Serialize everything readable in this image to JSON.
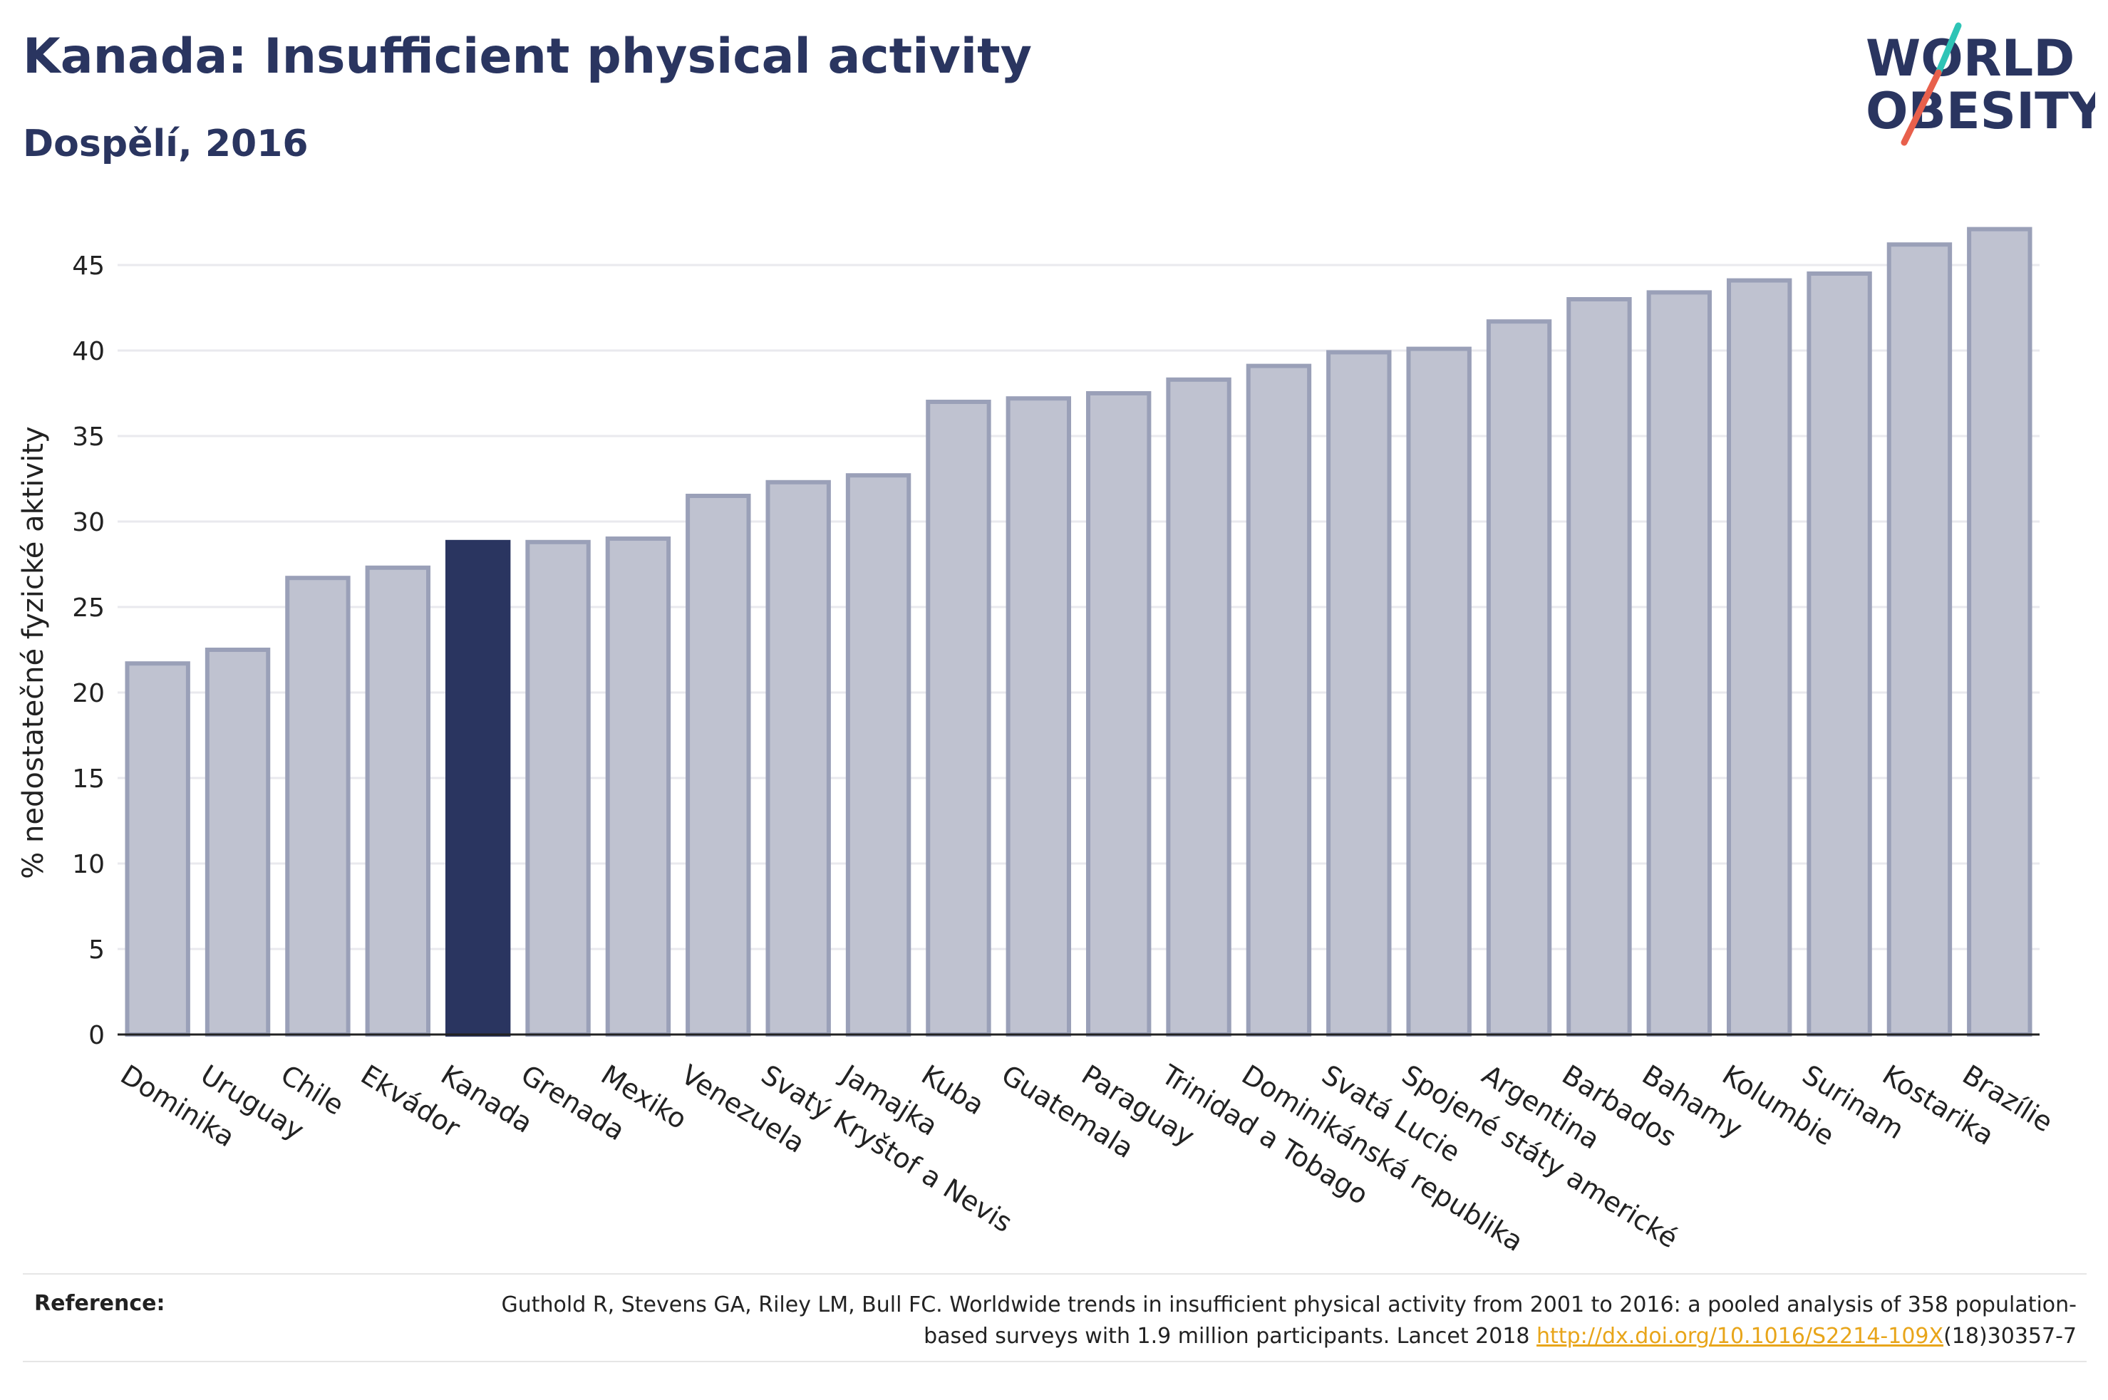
{
  "header": {
    "title": "Kanada: Insufficient physical activity",
    "subtitle": "Dospělí, 2016"
  },
  "logo": {
    "line1": "WORLD",
    "line2": "OBESITY",
    "colors": {
      "text": "#2a3560",
      "slash_teal": "#2ec4b6",
      "slash_coral": "#e8604c"
    }
  },
  "chart_data": {
    "type": "bar",
    "categories": [
      "Dominika",
      "Uruguay",
      "Chile",
      "Ekvádor",
      "Kanada",
      "Grenada",
      "Mexiko",
      "Venezuela",
      "Svatý Kryštof a Nevis",
      "Jamajka",
      "Kuba",
      "Guatemala",
      "Paraguay",
      "Trinidad a Tobago",
      "Dominikánská republika",
      "Svatá Lucie",
      "Spojené státy americké",
      "Argentina",
      "Barbados",
      "Bahamy",
      "Kolumbie",
      "Surinam",
      "Kostarika",
      "Brazílie"
    ],
    "values": [
      21.7,
      22.5,
      26.7,
      27.3,
      28.8,
      28.8,
      29.0,
      31.5,
      32.3,
      32.7,
      37.0,
      37.2,
      37.5,
      38.3,
      39.1,
      39.9,
      40.1,
      41.7,
      43.0,
      43.4,
      44.1,
      44.5,
      46.2,
      47.1
    ],
    "highlight": "Kanada",
    "ylabel": "% nedostatečné fyzické aktivity",
    "xlabel": "",
    "ylim": [
      0,
      48
    ],
    "yticks": [
      0,
      5,
      10,
      15,
      20,
      25,
      30,
      35,
      40,
      45
    ],
    "grid": true,
    "colors": {
      "bar": "#bfc2d0",
      "bar_edge": "#9aa0b8",
      "highlight": "#2a3560",
      "grid": "#e9e9ee",
      "axis": "#222222"
    }
  },
  "reference": {
    "label": "Reference:",
    "text_before": "Guthold R, Stevens GA, Riley LM, Bull FC. Worldwide trends in insufficient physical activity from 2001 to 2016: a pooled analysis of 358 population-based surveys with 1.9 million participants. Lancet 2018 ",
    "link": "http://dx.doi.org/10.1016/S2214-109X",
    "text_after": "(18)30357-7"
  }
}
